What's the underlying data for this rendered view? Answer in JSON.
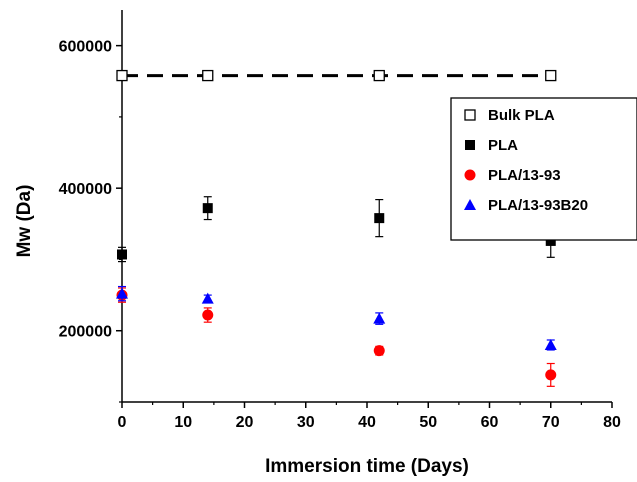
{
  "chart_data": {
    "type": "scatter",
    "xlabel": "Immersion time (Days)",
    "ylabel": "Mw (Da)",
    "xlim": [
      0,
      80
    ],
    "ylim": [
      100000,
      650000
    ],
    "x_ticks": [
      0,
      10,
      20,
      30,
      40,
      50,
      60,
      70,
      80
    ],
    "y_ticks": [
      200000,
      400000,
      600000
    ],
    "x_tick_labels": [
      "0",
      "10",
      "20",
      "30",
      "40",
      "50",
      "60",
      "70",
      "80"
    ],
    "y_tick_labels": [
      "200000",
      "400000",
      "600000"
    ],
    "grid": false,
    "legend_position": "top-right",
    "series": [
      {
        "name": "Bulk PLA",
        "marker": "open-square",
        "color": "#000000",
        "line": "dashed",
        "points": [
          {
            "x": 0,
            "y": 558000
          },
          {
            "x": 14,
            "y": 558000
          },
          {
            "x": 42,
            "y": 558000
          },
          {
            "x": 70,
            "y": 558000
          }
        ]
      },
      {
        "name": "PLA",
        "marker": "filled-square",
        "color": "#000000",
        "points": [
          {
            "x": 0,
            "y": 307000,
            "err": 10000
          },
          {
            "x": 14,
            "y": 372000,
            "err": 16000
          },
          {
            "x": 42,
            "y": 358000,
            "err": 26000
          },
          {
            "x": 70,
            "y": 326000,
            "err": 23000
          }
        ]
      },
      {
        "name": "PLA/13-93",
        "marker": "filled-circle",
        "color": "#ff0000",
        "points": [
          {
            "x": 0,
            "y": 250000,
            "err": 10000
          },
          {
            "x": 14,
            "y": 222000,
            "err": 10000
          },
          {
            "x": 42,
            "y": 172000,
            "err": 6000
          },
          {
            "x": 70,
            "y": 138000,
            "err": 16000
          }
        ]
      },
      {
        "name": "PLA/13-93B20",
        "marker": "filled-triangle",
        "color": "#0000ff",
        "points": [
          {
            "x": 0,
            "y": 252000,
            "err": 10000
          },
          {
            "x": 14,
            "y": 245000,
            "err": 5000
          },
          {
            "x": 42,
            "y": 217000,
            "err": 8000
          },
          {
            "x": 70,
            "y": 180000,
            "err": 7000
          }
        ]
      }
    ]
  }
}
